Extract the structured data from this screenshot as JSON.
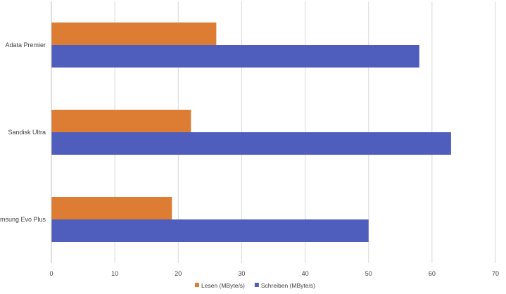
{
  "chart_data": {
    "type": "bar",
    "orientation": "horizontal",
    "categories": [
      "Adata Premier",
      "Sandisk Ultra",
      "Samsung Evo Plus"
    ],
    "series": [
      {
        "name": "Lesen (MByte/s)",
        "color": "#DD7C33",
        "values": [
          26,
          22,
          19
        ]
      },
      {
        "name": "Schreiben (MByte/s)",
        "color": "#4F5DBD",
        "values": [
          58,
          63,
          50
        ]
      }
    ],
    "xlim": [
      0,
      70
    ],
    "xticks": [
      0,
      10,
      20,
      30,
      40,
      50,
      60,
      70
    ],
    "grid": true,
    "legend_position": "bottom",
    "title": "",
    "xlabel": "",
    "ylabel": ""
  }
}
